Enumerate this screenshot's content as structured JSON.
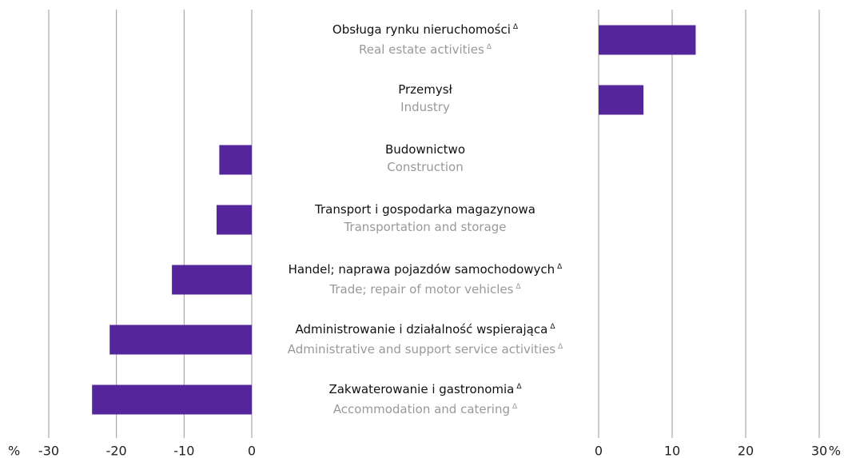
{
  "chart_data": {
    "type": "bar",
    "categories": [
      "Obsługa rynku nieruchomości",
      "Przemysł",
      "Budownictwo",
      "Transport i gospodarka magazynowa",
      "Handel; naprawa pojazdów samochodowych",
      "Administrowanie i działalność wspierająca",
      "Zakwaterowanie i gastronomia"
    ],
    "categories_en": [
      "Real estate activities",
      "Industry",
      "Construction",
      "Transportation and storage",
      "Trade; repair of motor vehicles",
      "Administrative and support service activities",
      "Accommodation and catering"
    ],
    "flag": "Δ",
    "flagged": [
      true,
      false,
      false,
      false,
      true,
      true,
      true
    ],
    "flagged_en": [
      true,
      false,
      false,
      false,
      true,
      true,
      true
    ],
    "values": [
      13.2,
      6.1,
      -4.8,
      -5.2,
      -11.8,
      -21.0,
      -23.6
    ],
    "color": "#55259b",
    "unit": "%",
    "xlim": [
      -30,
      0
    ],
    "xticks": [
      -30,
      -20,
      -10,
      0
    ],
    "x2lim": [
      0,
      30
    ],
    "x2ticks": [
      0,
      10,
      20,
      30
    ],
    "grid": true
  }
}
